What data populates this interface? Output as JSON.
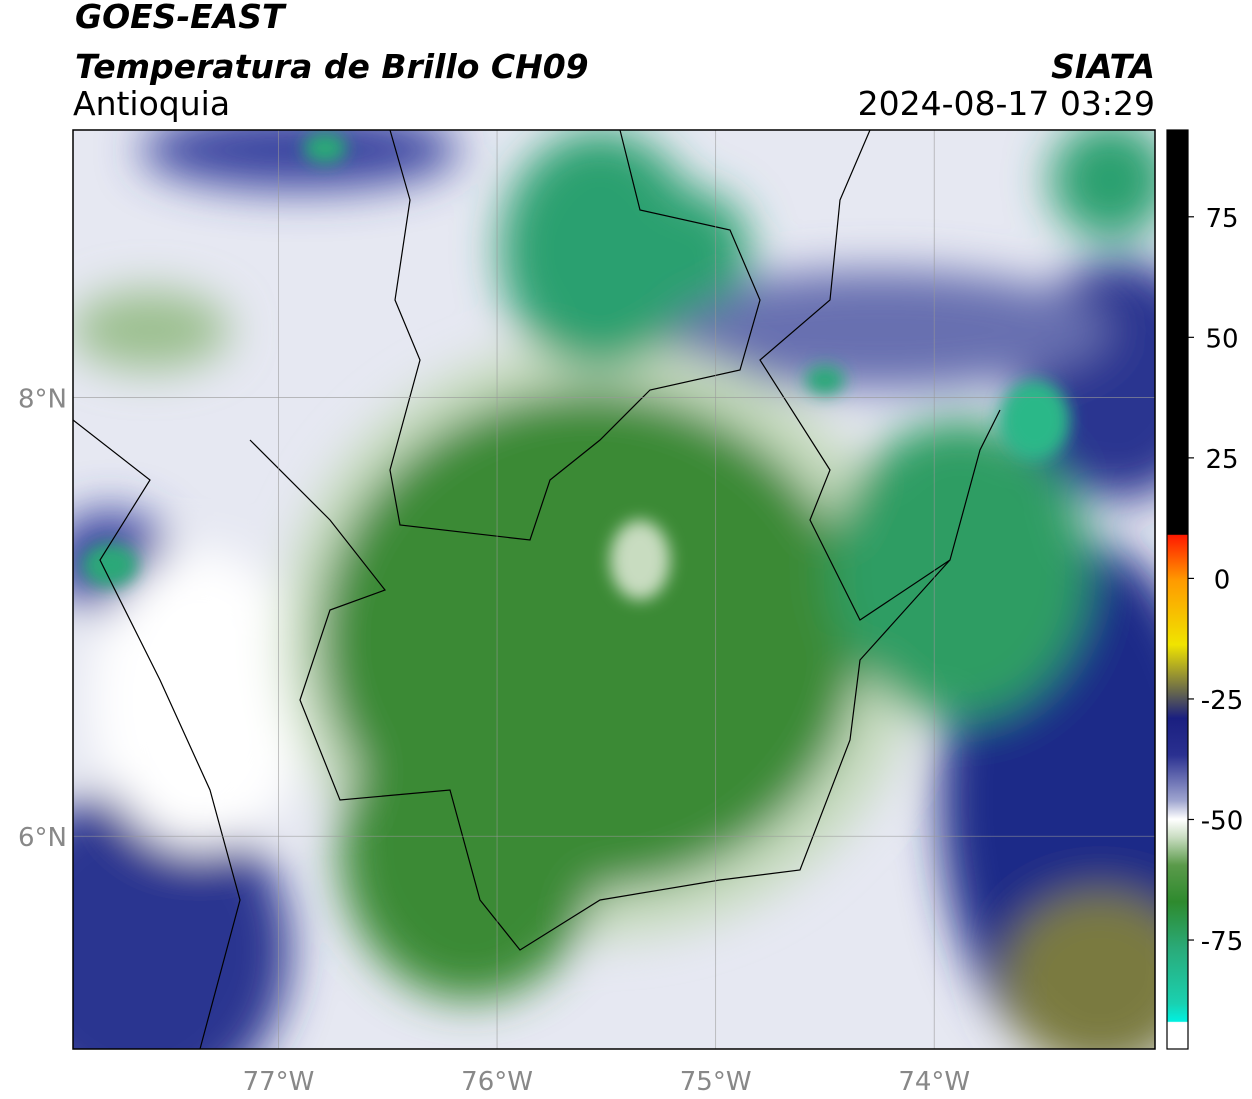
{
  "header": {
    "title": "GOES-EAST",
    "subtitle": "Temperatura de Brillo CH09",
    "region": "Antioquia",
    "source": "SIATA",
    "datetime": "2024-08-17 03:29"
  },
  "map": {
    "xlim": [
      -77.94,
      -72.99
    ],
    "ylim": [
      5.03,
      9.22
    ],
    "xticks": [
      {
        "value": -77,
        "label": "77°W"
      },
      {
        "value": -76,
        "label": "76°W"
      },
      {
        "value": -75,
        "label": "75°W"
      },
      {
        "value": -74,
        "label": "74°W"
      }
    ],
    "yticks": [
      {
        "value": 6,
        "label": "6°N"
      },
      {
        "value": 8,
        "label": "8°N"
      }
    ]
  },
  "colorbar": {
    "lim": [
      -97.6,
      93
    ],
    "ticks": [
      75,
      50,
      25,
      0,
      -25,
      -50,
      -75
    ]
  }
}
